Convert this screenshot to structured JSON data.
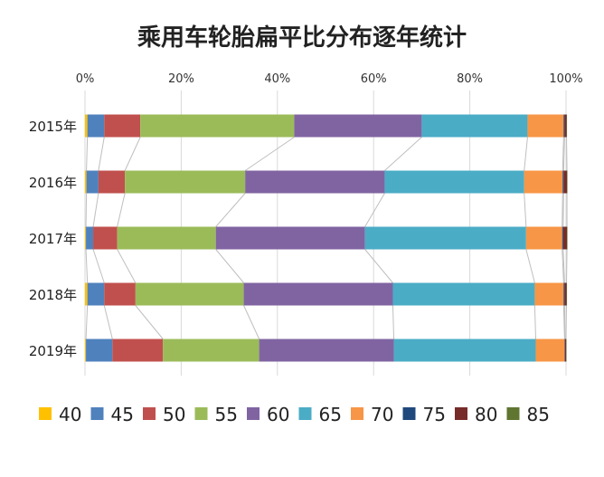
{
  "chart_data": {
    "type": "bar",
    "orientation": "horizontal",
    "stacked": "percent",
    "title": "乘用车轮胎扁平比分布逐年统计",
    "categories": [
      "2015年",
      "2016年",
      "2017年",
      "2018年",
      "2019年"
    ],
    "x_ticks": [
      "0%",
      "20%",
      "40%",
      "60%",
      "80%",
      "100%"
    ],
    "xlim": [
      0,
      100
    ],
    "x_axis_position": "top",
    "legend_position": "bottom",
    "grid": true,
    "series_connectors": true,
    "series": [
      {
        "name": "40",
        "color": "#FFC000",
        "values": [
          0.5,
          0.3,
          0.2,
          0.5,
          0.2
        ]
      },
      {
        "name": "45",
        "color": "#4F81BD",
        "values": [
          3.5,
          2.5,
          1.5,
          3.5,
          5.5
        ]
      },
      {
        "name": "50",
        "color": "#C0504D",
        "values": [
          7.5,
          5.5,
          5.0,
          6.5,
          10.5
        ]
      },
      {
        "name": "55",
        "color": "#9BBB59",
        "values": [
          32.0,
          25.0,
          20.5,
          22.5,
          20.0
        ]
      },
      {
        "name": "60",
        "color": "#8064A2",
        "values": [
          26.5,
          29.0,
          31.0,
          31.0,
          28.0
        ]
      },
      {
        "name": "65",
        "color": "#4BACC6",
        "values": [
          22.0,
          29.0,
          33.5,
          29.5,
          29.5
        ]
      },
      {
        "name": "70",
        "color": "#F79646",
        "values": [
          7.5,
          8.0,
          7.5,
          6.0,
          6.0
        ]
      },
      {
        "name": "75",
        "color": "#1F497D",
        "values": [
          0.2,
          0.2,
          0.2,
          0.2,
          0.1
        ]
      },
      {
        "name": "80",
        "color": "#772C2A",
        "values": [
          0.4,
          0.7,
          0.8,
          0.4,
          0.2
        ]
      },
      {
        "name": "85",
        "color": "#5F7530",
        "values": [
          0.1,
          0.1,
          0.1,
          0.1,
          0.1
        ]
      }
    ]
  }
}
